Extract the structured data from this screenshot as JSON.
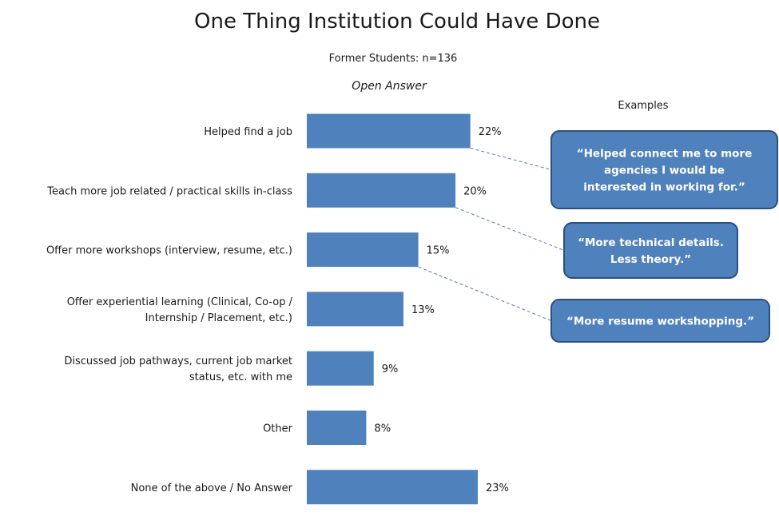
{
  "chart_data": {
    "type": "bar",
    "orientation": "horizontal",
    "title": "One Thing Institution Could Have Done",
    "subtitle": "Former Students: n=136",
    "note": "Open Answer",
    "categories": [
      [
        "Helped find a job"
      ],
      [
        "Teach more job related / practical skills in-class"
      ],
      [
        "Offer more workshops (interview, resume, etc.)"
      ],
      [
        "Offer experiential learning (Clinical, Co-op /",
        "Internship / Placement, etc.)"
      ],
      [
        "Discussed job pathways, current job market",
        "status, etc. with me"
      ],
      [
        "Other"
      ],
      [
        "None of the above / No Answer"
      ]
    ],
    "values": [
      22,
      20,
      15,
      13,
      9,
      8,
      23
    ],
    "value_labels": [
      "22%",
      "20%",
      "15%",
      "13%",
      "9%",
      "8%",
      "23%"
    ],
    "bar_color": "#4f81bd",
    "grid": false,
    "legend": "none"
  },
  "examples": {
    "heading": "Examples",
    "callouts": [
      {
        "lines": [
          "“Helped connect me to more",
          "agencies I would be",
          "interested in working for.”"
        ],
        "linked_category_index": 0
      },
      {
        "lines": [
          "“More technical details.",
          "Less theory.”"
        ],
        "linked_category_index": 1
      },
      {
        "lines": [
          "“More resume workshopping.”"
        ],
        "linked_category_index": 2
      }
    ]
  }
}
